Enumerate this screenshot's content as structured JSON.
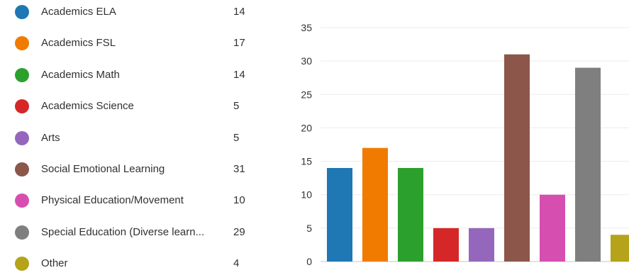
{
  "chart_data": {
    "type": "bar",
    "categories": [
      "Academics ELA",
      "Academics FSL",
      "Academics Math",
      "Academics Science",
      "Arts",
      "Social Emotional Learning",
      "Physical Education/Movement",
      "Special Education (Diverse learn...",
      "Other"
    ],
    "values": [
      14,
      17,
      14,
      5,
      5,
      31,
      10,
      29,
      4
    ],
    "colors": [
      "#1f77b4",
      "#f07b00",
      "#2ca02c",
      "#d62728",
      "#9467bd",
      "#8c564b",
      "#d64fb0",
      "#7f7f7f",
      "#b5a31a"
    ],
    "yticks": [
      0,
      5,
      10,
      15,
      20,
      25,
      30,
      35
    ],
    "ylim": [
      0,
      35
    ],
    "grid": true,
    "legend": "left"
  }
}
